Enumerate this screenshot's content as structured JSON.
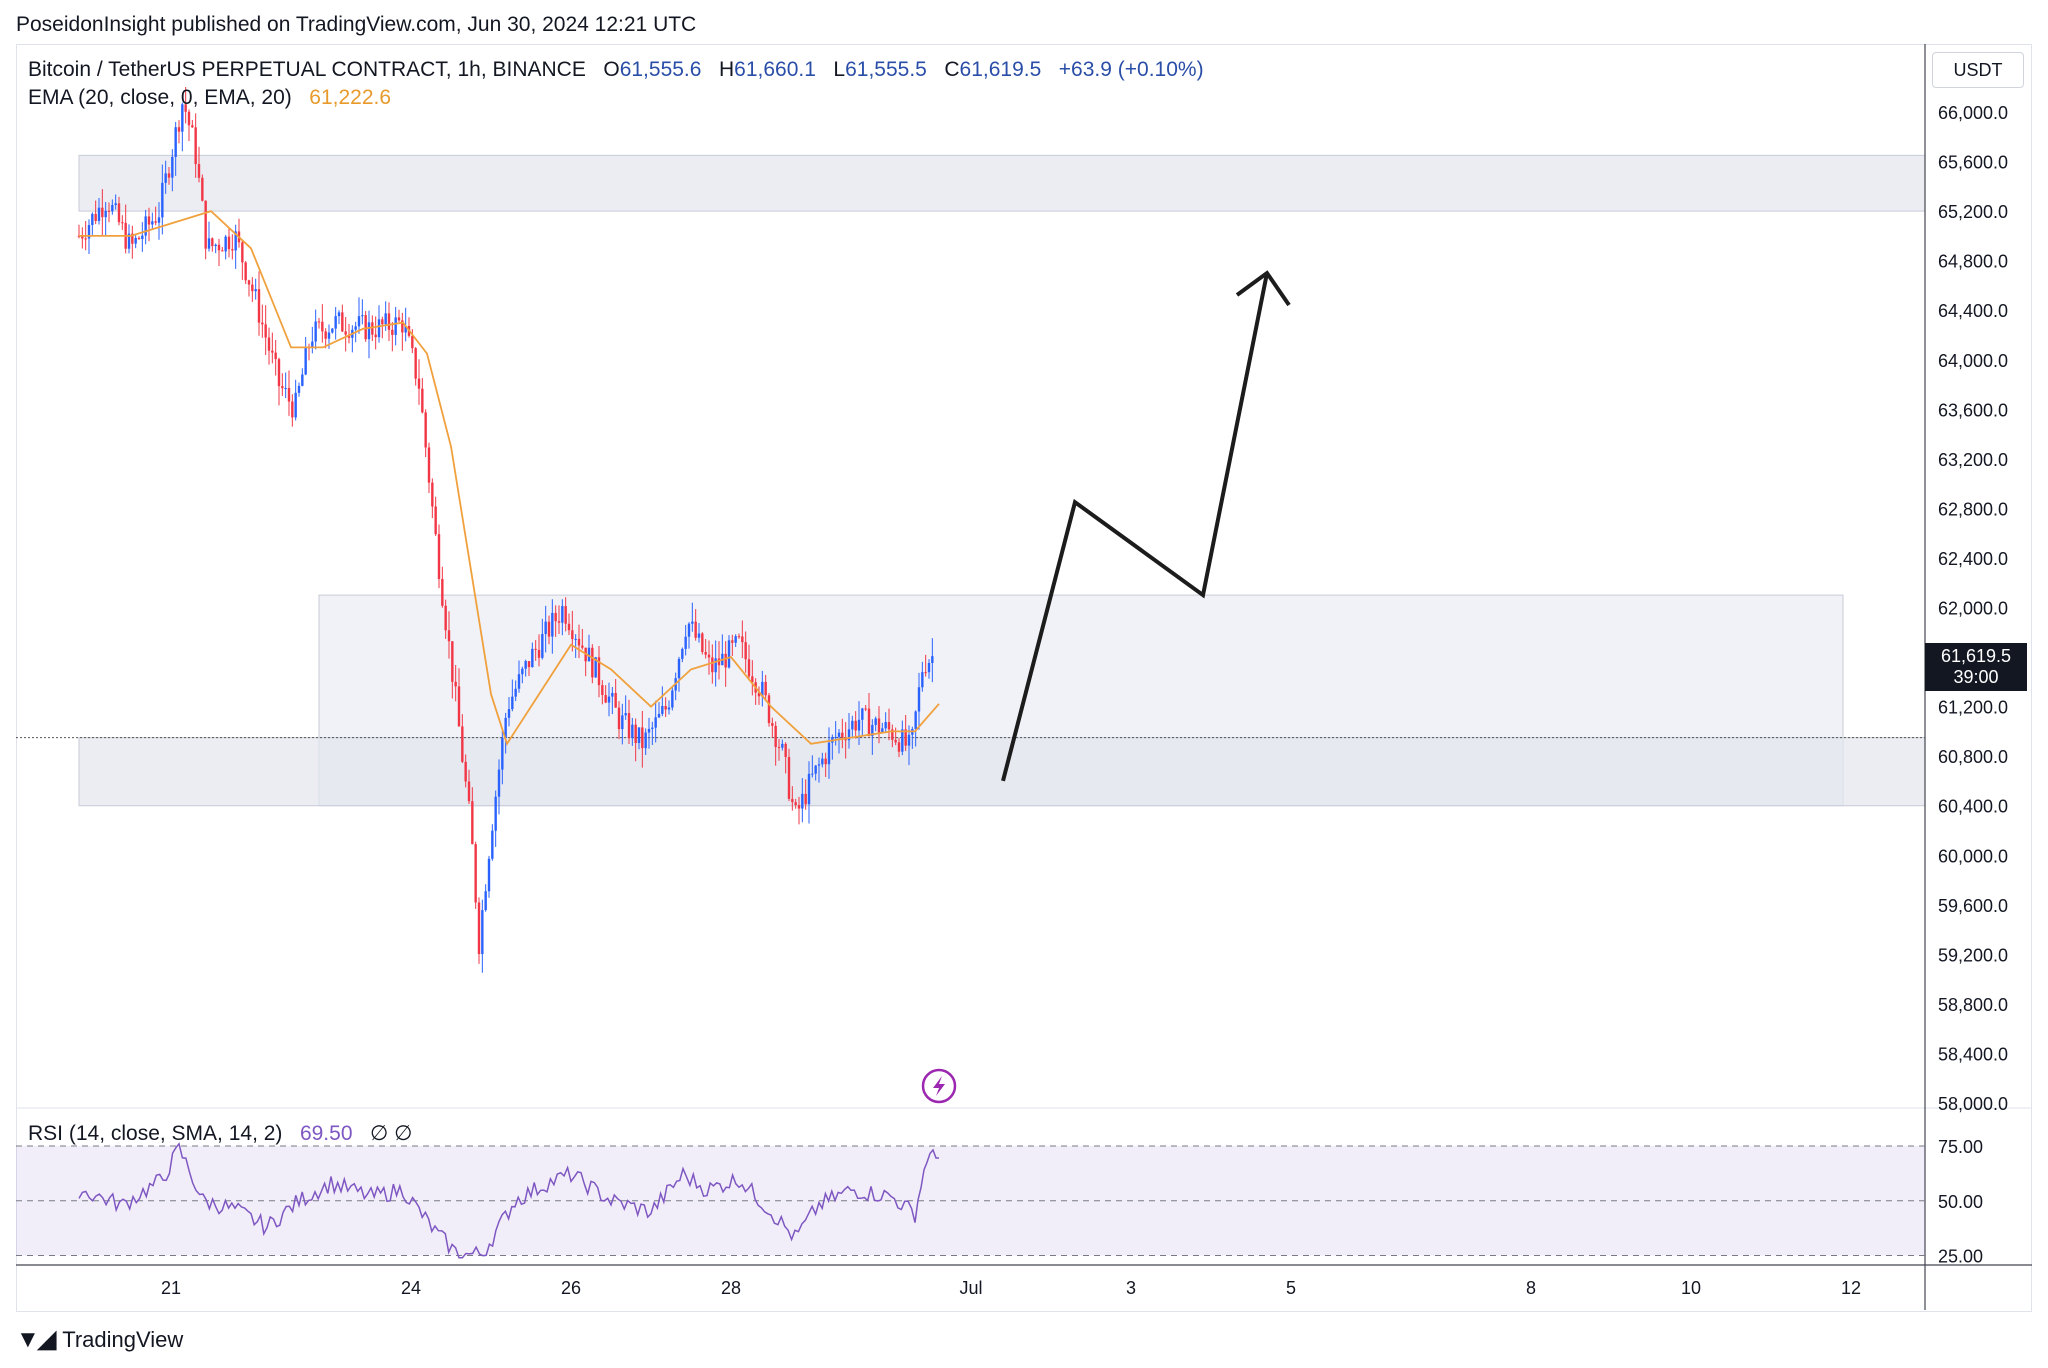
{
  "header": {
    "published_text": "PoseidonInsight published on TradingView.com, Jun 30, 2024 12:21 UTC"
  },
  "legend": {
    "symbol": "Bitcoin / TetherUS PERPETUAL CONTRACT, 1h, BINANCE",
    "o_label": "O",
    "o_value": "61,555.6",
    "h_label": "H",
    "h_value": "61,660.1",
    "l_label": "L",
    "l_value": "61,555.5",
    "c_label": "C",
    "c_value": "61,619.5",
    "change": "+63.9 (+0.10%)",
    "ema_label": "EMA (20, close, 0, EMA, 20)",
    "ema_value": "61,222.6",
    "rsi_label": "RSI (14, close, SMA, 14, 2)",
    "rsi_value": "69.50",
    "rsi_na": "∅ ∅"
  },
  "price_axis": {
    "currency": "USDT",
    "last_price": "61,619.5",
    "countdown": "39:00"
  },
  "footer": {
    "brand": "TradingView",
    "logo_icon": "tradingview-logo-icon"
  },
  "colors": {
    "up": "#2962ff",
    "down": "#f23645",
    "ema": "#f0a03c",
    "rsi": "#7e57c2",
    "zone": "#e6e8f0",
    "drawing": "#1c1c1c"
  },
  "chart_data": [
    {
      "type": "candlestick",
      "y_ticks": [
        "66,000.0",
        "65,600.0",
        "65,200.0",
        "64,800.0",
        "64,400.0",
        "64,000.0",
        "63,600.0",
        "63,200.0",
        "62,800.0",
        "62,400.0",
        "62,000.0",
        "61,200.0",
        "60,800.0",
        "60,400.0",
        "60,000.0",
        "59,600.0",
        "59,200.0",
        "58,800.0",
        "58,400.0",
        "58,000.0"
      ],
      "y_tick_values": [
        66000,
        65600,
        65200,
        64800,
        64400,
        64000,
        63600,
        63200,
        62800,
        62400,
        62000,
        61200,
        60800,
        60400,
        60000,
        59600,
        59200,
        58800,
        58400,
        58000
      ],
      "ylim": [
        58000,
        66200
      ],
      "x_ticks": [
        "21",
        "24",
        "26",
        "28",
        "Jul",
        "3",
        "5",
        "8",
        "10",
        "12"
      ],
      "x_tick_days": [
        21,
        24,
        26,
        28,
        31,
        33,
        35,
        38,
        40,
        42
      ],
      "x_day_start": 19.85,
      "x_day_end": 43.7,
      "price_path": [
        {
          "day": 19.85,
          "price": 65000
        },
        {
          "day": 20.2,
          "price": 65300
        },
        {
          "day": 20.5,
          "price": 64900
        },
        {
          "day": 20.85,
          "price": 65200
        },
        {
          "day": 21.15,
          "price": 66100
        },
        {
          "day": 21.3,
          "price": 65700
        },
        {
          "day": 21.45,
          "price": 64900
        },
        {
          "day": 21.8,
          "price": 65000
        },
        {
          "day": 22.05,
          "price": 64500
        },
        {
          "day": 22.35,
          "price": 63800
        },
        {
          "day": 22.55,
          "price": 63600
        },
        {
          "day": 22.75,
          "price": 64200
        },
        {
          "day": 23.05,
          "price": 64300
        },
        {
          "day": 23.5,
          "price": 64250
        },
        {
          "day": 23.9,
          "price": 64300
        },
        {
          "day": 24.1,
          "price": 63800
        },
        {
          "day": 24.3,
          "price": 62600
        },
        {
          "day": 24.55,
          "price": 61300
        },
        {
          "day": 24.75,
          "price": 60200
        },
        {
          "day": 24.85,
          "price": 59300
        },
        {
          "day": 25.0,
          "price": 60200
        },
        {
          "day": 25.2,
          "price": 61200
        },
        {
          "day": 25.5,
          "price": 61600
        },
        {
          "day": 25.9,
          "price": 62000
        },
        {
          "day": 26.3,
          "price": 61500
        },
        {
          "day": 26.6,
          "price": 61100
        },
        {
          "day": 26.9,
          "price": 60900
        },
        {
          "day": 27.2,
          "price": 61200
        },
        {
          "day": 27.45,
          "price": 61900
        },
        {
          "day": 27.75,
          "price": 61500
        },
        {
          "day": 28.1,
          "price": 61700
        },
        {
          "day": 28.4,
          "price": 61300
        },
        {
          "day": 28.65,
          "price": 60800
        },
        {
          "day": 28.8,
          "price": 60300
        },
        {
          "day": 29.0,
          "price": 60600
        },
        {
          "day": 29.3,
          "price": 60950
        },
        {
          "day": 29.6,
          "price": 61100
        },
        {
          "day": 30.0,
          "price": 61000
        },
        {
          "day": 30.25,
          "price": 60850
        },
        {
          "day": 30.4,
          "price": 61550
        },
        {
          "day": 30.55,
          "price": 61620
        }
      ],
      "ema_path": [
        {
          "day": 19.85,
          "price": 65000
        },
        {
          "day": 20.5,
          "price": 65000
        },
        {
          "day": 21.0,
          "price": 65100
        },
        {
          "day": 21.5,
          "price": 65200
        },
        {
          "day": 22.0,
          "price": 64900
        },
        {
          "day": 22.5,
          "price": 64100
        },
        {
          "day": 22.9,
          "price": 64100
        },
        {
          "day": 23.4,
          "price": 64250
        },
        {
          "day": 23.9,
          "price": 64300
        },
        {
          "day": 24.2,
          "price": 64050
        },
        {
          "day": 24.5,
          "price": 63300
        },
        {
          "day": 24.75,
          "price": 62300
        },
        {
          "day": 25.0,
          "price": 61300
        },
        {
          "day": 25.2,
          "price": 60900
        },
        {
          "day": 25.6,
          "price": 61300
        },
        {
          "day": 26.0,
          "price": 61700
        },
        {
          "day": 26.5,
          "price": 61500
        },
        {
          "day": 27.0,
          "price": 61200
        },
        {
          "day": 27.5,
          "price": 61500
        },
        {
          "day": 28.0,
          "price": 61600
        },
        {
          "day": 28.5,
          "price": 61200
        },
        {
          "day": 29.0,
          "price": 60900
        },
        {
          "day": 29.5,
          "price": 60950
        },
        {
          "day": 30.0,
          "price": 61000
        },
        {
          "day": 30.3,
          "price": 61000
        },
        {
          "day": 30.6,
          "price": 61222.6
        }
      ],
      "zones": [
        {
          "day_start": 19.85,
          "day_end": 43.7,
          "price_low": 65200,
          "price_high": 65650
        },
        {
          "day_start": 22.85,
          "day_end": 41.9,
          "price_low": 60400,
          "price_high": 62100
        },
        {
          "day_start": 19.85,
          "day_end": 43.7,
          "price_low": 60400,
          "price_high": 60950
        }
      ],
      "projection_path": [
        {
          "day": 31.4,
          "price": 60600
        },
        {
          "day": 32.3,
          "price": 62850
        },
        {
          "day": 33.9,
          "price": 62100
        },
        {
          "day": 34.7,
          "price": 64700
        }
      ],
      "last_price_value": 61619.5,
      "price_line_value": 60950,
      "news_marker_day": 30.6
    },
    {
      "type": "line",
      "title": "RSI (14, close, SMA, 14, 2)",
      "y_ticks": [
        "75.00",
        "50.00",
        "25.00"
      ],
      "y_tick_values": [
        75,
        50,
        25
      ],
      "ylim": [
        22,
        85
      ],
      "band": [
        30,
        70
      ],
      "points": [
        {
          "day": 19.85,
          "value": 55
        },
        {
          "day": 20.4,
          "value": 48
        },
        {
          "day": 20.9,
          "value": 60
        },
        {
          "day": 21.1,
          "value": 74
        },
        {
          "day": 21.4,
          "value": 50
        },
        {
          "day": 21.8,
          "value": 46
        },
        {
          "day": 22.2,
          "value": 38
        },
        {
          "day": 22.6,
          "value": 50
        },
        {
          "day": 23.0,
          "value": 58
        },
        {
          "day": 23.5,
          "value": 52
        },
        {
          "day": 23.9,
          "value": 55
        },
        {
          "day": 24.3,
          "value": 36
        },
        {
          "day": 24.6,
          "value": 25
        },
        {
          "day": 24.9,
          "value": 26
        },
        {
          "day": 25.3,
          "value": 50
        },
        {
          "day": 25.7,
          "value": 58
        },
        {
          "day": 26.0,
          "value": 62
        },
        {
          "day": 26.5,
          "value": 50
        },
        {
          "day": 27.0,
          "value": 45
        },
        {
          "day": 27.4,
          "value": 62
        },
        {
          "day": 27.7,
          "value": 55
        },
        {
          "day": 28.1,
          "value": 60
        },
        {
          "day": 28.5,
          "value": 45
        },
        {
          "day": 28.8,
          "value": 33
        },
        {
          "day": 29.1,
          "value": 48
        },
        {
          "day": 29.5,
          "value": 55
        },
        {
          "day": 30.0,
          "value": 52
        },
        {
          "day": 30.3,
          "value": 44
        },
        {
          "day": 30.45,
          "value": 70
        },
        {
          "day": 30.6,
          "value": 69.5
        }
      ]
    }
  ]
}
